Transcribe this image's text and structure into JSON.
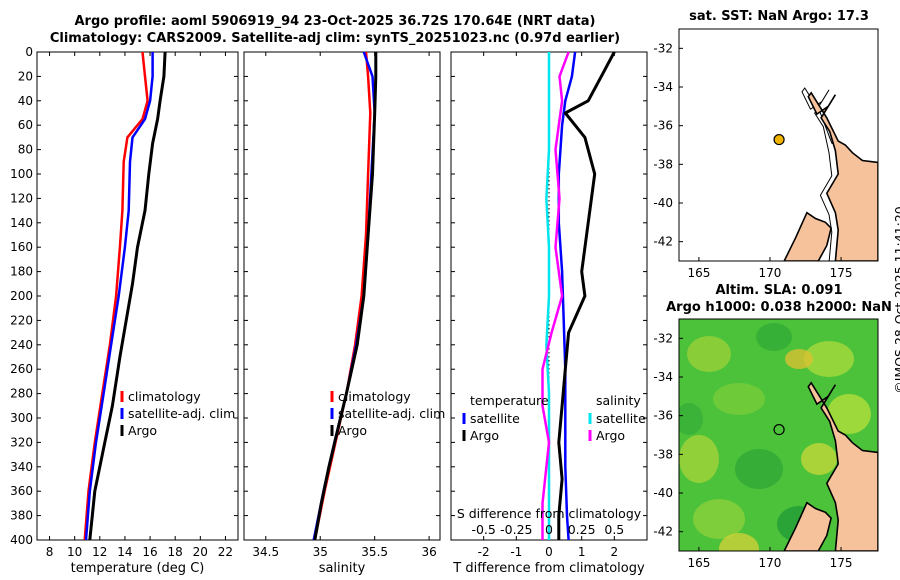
{
  "titles": {
    "line1": "Argo profile: aoml 5906919_94 23-Oct-2025 36.72S 170.64E (NRT data)",
    "line2": "Climatology: CARS2009. Satellite-adj clim: synTS_20251023.nc (0.97d earlier)",
    "sst_map": "sat. SST: NaN Argo: 17.3",
    "sla_line1": "Altim. SLA: 0.091",
    "sla_line2": "Argo h1000: 0.038 h2000: NaN"
  },
  "watermark": "©IMOS 28-Oct-2025 11:41:20",
  "colors": {
    "climatology": "#ff0000",
    "satellite": "#0000ff",
    "argo": "#000000",
    "s_satellite": "#00e5ee",
    "s_argo": "#ff00ff",
    "land": "#f5c29b",
    "float_marker": "#f0b400"
  },
  "chart_data": [
    {
      "type": "line",
      "id": "temperature",
      "xlabel": "temperature (deg C)",
      "ylabel": "depth",
      "xlim": [
        7,
        23
      ],
      "ylim": [
        400,
        0
      ],
      "xticks": [
        8,
        10,
        12,
        14,
        16,
        18,
        20,
        22
      ],
      "yticks": [
        0,
        20,
        40,
        60,
        80,
        100,
        120,
        140,
        160,
        180,
        200,
        220,
        240,
        260,
        280,
        300,
        320,
        340,
        360,
        380,
        400
      ],
      "legend": {
        "position": "lower-right",
        "entries": [
          "climatology",
          "satellite-adj. clim",
          "Argo"
        ]
      },
      "series": [
        {
          "name": "climatology",
          "x": [
            15.4,
            15.6,
            15.8,
            15.4,
            14.2,
            13.9,
            13.8,
            13.6,
            13.3,
            12.8,
            12.2,
            11.6,
            11.1,
            10.8
          ],
          "y": [
            0,
            20,
            40,
            55,
            70,
            90,
            130,
            160,
            200,
            240,
            280,
            320,
            360,
            400
          ]
        },
        {
          "name": "satellite-adj. clim",
          "x": [
            16.2,
            16.2,
            16.0,
            15.6,
            14.6,
            14.4,
            14.3,
            14.0,
            13.5,
            12.9,
            12.3,
            11.7,
            11.2,
            10.9
          ],
          "y": [
            0,
            20,
            40,
            55,
            70,
            90,
            130,
            160,
            200,
            240,
            280,
            320,
            360,
            400
          ]
        },
        {
          "name": "Argo",
          "x": [
            17.2,
            17.1,
            16.8,
            16.6,
            16.2,
            15.9,
            15.6,
            15.0,
            14.6,
            14.1,
            13.6,
            13.0,
            12.4,
            11.6,
            11.2
          ],
          "y": [
            0,
            20,
            40,
            55,
            75,
            100,
            130,
            160,
            190,
            220,
            250,
            290,
            320,
            360,
            400
          ]
        }
      ]
    },
    {
      "type": "line",
      "id": "salinity",
      "xlabel": "salinity",
      "xlim": [
        34.3,
        36.1
      ],
      "ylim": [
        400,
        0
      ],
      "xticks": [
        34.5,
        35,
        35.5,
        36
      ],
      "legend": {
        "position": "lower-right",
        "entries": [
          "climatology",
          "satellite-adj. clim",
          "Argo"
        ]
      },
      "series": [
        {
          "name": "climatology",
          "x": [
            35.42,
            35.44,
            35.46,
            35.44,
            35.42,
            35.38,
            35.32,
            35.24,
            35.14,
            35.04,
            34.95
          ],
          "y": [
            0,
            20,
            50,
            100,
            150,
            200,
            240,
            280,
            320,
            360,
            400
          ]
        },
        {
          "name": "satellite-adj. clim",
          "x": [
            35.4,
            35.48,
            35.5,
            35.47,
            35.44,
            35.4,
            35.33,
            35.24,
            35.13,
            35.03,
            34.94
          ],
          "y": [
            0,
            20,
            50,
            100,
            150,
            200,
            240,
            280,
            320,
            360,
            400
          ]
        },
        {
          "name": "Argo",
          "x": [
            35.51,
            35.51,
            35.5,
            35.48,
            35.44,
            35.4,
            35.34,
            35.24,
            35.16,
            35.08,
            35.01,
            34.95
          ],
          "y": [
            0,
            20,
            50,
            100,
            150,
            200,
            240,
            280,
            310,
            340,
            370,
            400
          ]
        }
      ]
    },
    {
      "type": "line",
      "id": "differences",
      "xlabel": "T difference from climatology",
      "xlabel_top": "S difference from climatology",
      "xlim": [
        -3,
        3
      ],
      "ylim": [
        400,
        0
      ],
      "xticks": [
        -2,
        -1,
        0,
        1,
        2
      ],
      "s_xticks": [
        "-0.5",
        "-0.25",
        "0",
        "0.25",
        "0.5"
      ],
      "legend_t": {
        "title": "temperature",
        "entries": [
          "satellite",
          "Argo"
        ]
      },
      "legend_s": {
        "title": "salinity",
        "entries": [
          "satellite",
          "Argo"
        ]
      },
      "series": [
        {
          "name": "T satellite",
          "x": [
            0.8,
            0.7,
            0.5,
            0.4,
            0.3,
            0.3,
            0.4,
            0.45,
            0.5,
            0.5,
            0.5,
            0.55,
            0.6
          ],
          "y": [
            0,
            20,
            40,
            60,
            100,
            140,
            180,
            220,
            260,
            300,
            340,
            380,
            400
          ]
        },
        {
          "name": "T Argo",
          "x": [
            2.0,
            1.6,
            1.2,
            0.5,
            1.1,
            1.4,
            1.2,
            1.0,
            1.1,
            0.6,
            0.5,
            0.4,
            0.3,
            0.4,
            0.3,
            0.3
          ],
          "y": [
            0,
            20,
            40,
            50,
            70,
            100,
            140,
            180,
            200,
            230,
            260,
            290,
            320,
            350,
            380,
            400
          ]
        },
        {
          "name": "S satellite",
          "x": [
            0.0,
            0.0,
            0.0,
            -0.02,
            0.0,
            0.0,
            -0.02,
            0.0,
            0.0,
            0.0
          ],
          "y": [
            0,
            40,
            80,
            120,
            160,
            200,
            240,
            280,
            340,
            400
          ]
        },
        {
          "name": "S Argo",
          "x": [
            0.15,
            0.08,
            0.1,
            0.05,
            0.08,
            0.05,
            0.1,
            0.02,
            -0.05,
            -0.05,
            0.0,
            -0.02,
            -0.05,
            -0.05
          ],
          "y": [
            0,
            20,
            40,
            80,
            120,
            160,
            200,
            230,
            260,
            290,
            320,
            340,
            370,
            400
          ]
        }
      ]
    },
    {
      "type": "map",
      "id": "sst_map",
      "title": "sat. SST: NaN Argo: 17.3",
      "lon_ticks": [
        165,
        170,
        175
      ],
      "lat_ticks": [
        -32,
        -34,
        -36,
        -38,
        -40,
        -42
      ],
      "lon_range": [
        163.6,
        177.6
      ],
      "lat_range": [
        -31,
        -43
      ],
      "float": {
        "lon": 170.64,
        "lat": -36.72
      }
    },
    {
      "type": "heatmap",
      "id": "sla_map",
      "title": "Altim. SLA: 0.091",
      "lon_ticks": [
        165,
        170,
        175
      ],
      "lat_ticks": [
        -32,
        -34,
        -36,
        -38,
        -40,
        -42
      ],
      "lon_range": [
        163.6,
        177.6
      ],
      "lat_range": [
        -31,
        -43
      ],
      "float": {
        "lon": 170.64,
        "lat": -36.72
      }
    }
  ]
}
